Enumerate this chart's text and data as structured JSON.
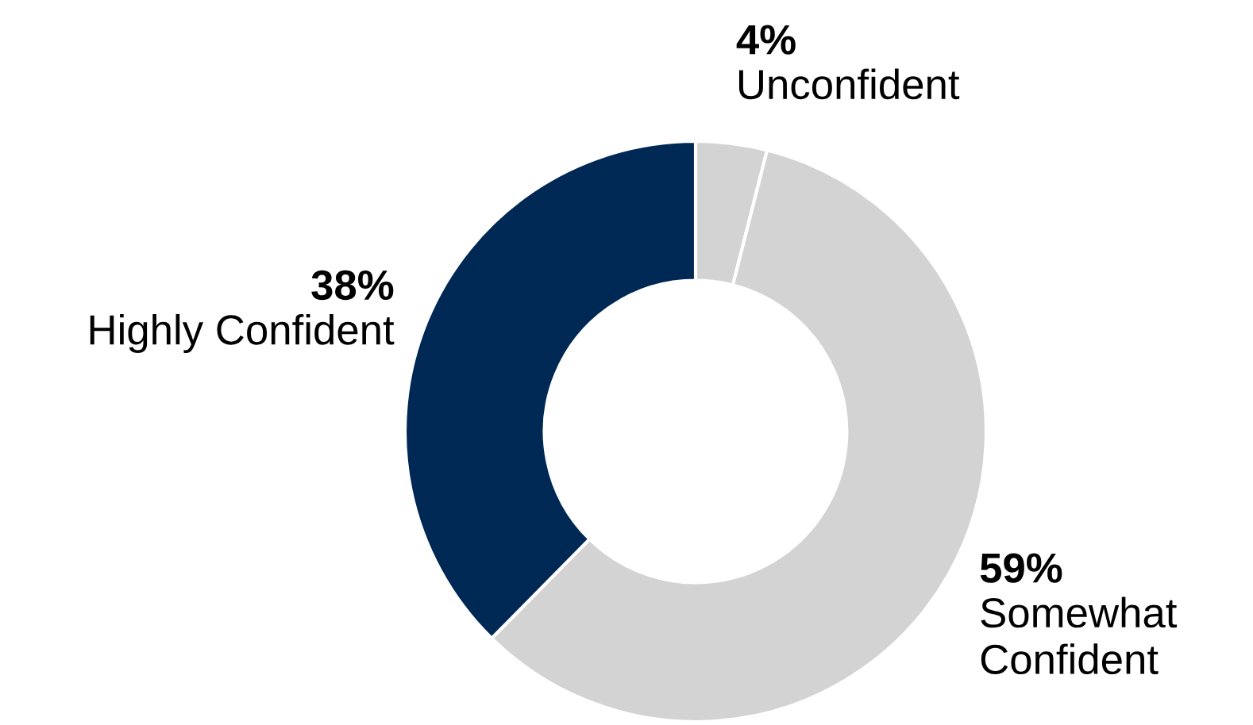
{
  "chart_data": {
    "type": "donut",
    "categories": [
      "Unconfident",
      "Somewhat\nConfident",
      "Highly Confident"
    ],
    "values": [
      4,
      59,
      38
    ],
    "colors": [
      "#d3d3d3",
      "#d3d3d3",
      "#002855"
    ],
    "value_labels": [
      "4%",
      "59%",
      "38%"
    ],
    "legend": false
  }
}
